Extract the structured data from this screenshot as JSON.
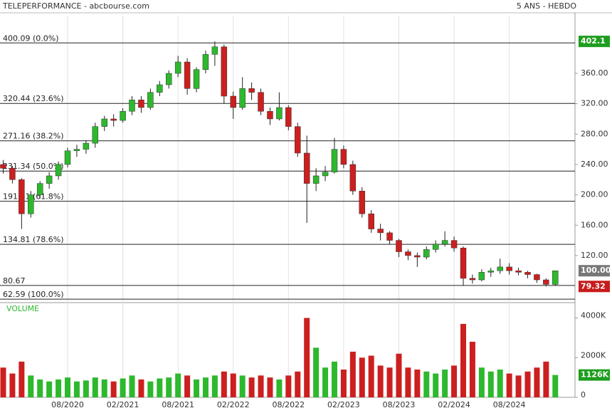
{
  "chart_data": {
    "type": "candlestick",
    "title": "TELEPERFORMANCE - abcbourse.com",
    "subtitle": "5 ANS - HEBDO",
    "volume_label": "VOLUME",
    "categories": [
      null,
      null,
      null,
      null,
      null,
      null,
      null,
      "08/2020",
      null,
      null,
      null,
      null,
      null,
      "02/2021",
      null,
      null,
      null,
      null,
      null,
      "08/2021",
      null,
      null,
      null,
      null,
      null,
      "02/2022",
      null,
      null,
      null,
      null,
      null,
      "08/2022",
      null,
      null,
      null,
      null,
      null,
      "02/2023",
      null,
      null,
      null,
      null,
      null,
      "08/2023",
      null,
      null,
      null,
      null,
      null,
      "02/2024",
      null,
      null,
      null,
      null,
      null,
      "08/2024",
      null,
      null,
      null,
      null,
      null
    ],
    "open": [
      240,
      235,
      220,
      175,
      200,
      215,
      225,
      240,
      258,
      260,
      268,
      290,
      300,
      298,
      310,
      325,
      315,
      335,
      345,
      360,
      375,
      340,
      365,
      385,
      395,
      330,
      315,
      340,
      335,
      310,
      300,
      315,
      290,
      255,
      215,
      225,
      230,
      260,
      240,
      205,
      175,
      155,
      150,
      140,
      125,
      120,
      118,
      128,
      135,
      140,
      130,
      90,
      88,
      98,
      100,
      105,
      100,
      98,
      95,
      88,
      82
    ],
    "high": [
      246,
      238,
      222,
      205,
      218,
      230,
      244,
      262,
      266,
      272,
      295,
      304,
      306,
      314,
      330,
      330,
      340,
      350,
      364,
      383,
      380,
      368,
      390,
      402.1,
      398,
      336,
      355,
      348,
      340,
      315,
      335,
      318,
      295,
      278,
      235,
      238,
      275,
      265,
      245,
      210,
      180,
      162,
      152,
      142,
      128,
      124,
      132,
      140,
      152,
      145,
      132,
      95,
      102,
      104,
      116,
      110,
      104,
      100,
      96,
      90,
      100
    ],
    "low": [
      228,
      215,
      155,
      170,
      195,
      208,
      220,
      236,
      250,
      254,
      262,
      284,
      290,
      295,
      305,
      308,
      312,
      330,
      340,
      355,
      332,
      335,
      360,
      370,
      320,
      300,
      312,
      325,
      305,
      292,
      298,
      285,
      250,
      163,
      205,
      218,
      228,
      235,
      200,
      170,
      150,
      140,
      135,
      118,
      114,
      105,
      115,
      124,
      132,
      125,
      80,
      83,
      86,
      92,
      96,
      95,
      94,
      90,
      84,
      79.32,
      80
    ],
    "close": [
      235,
      220,
      175,
      200,
      215,
      225,
      240,
      258,
      260,
      268,
      290,
      300,
      298,
      310,
      325,
      315,
      335,
      345,
      360,
      375,
      340,
      365,
      385,
      395,
      330,
      315,
      340,
      335,
      310,
      300,
      315,
      290,
      255,
      215,
      225,
      230,
      260,
      240,
      205,
      175,
      155,
      150,
      140,
      125,
      120,
      118,
      128,
      135,
      140,
      130,
      90,
      88,
      98,
      100,
      105,
      100,
      98,
      95,
      88,
      82,
      100
    ],
    "volume": [
      1500,
      1200,
      1800,
      1100,
      900,
      800,
      900,
      1000,
      800,
      850,
      1000,
      900,
      800,
      950,
      1100,
      900,
      800,
      950,
      1000,
      1200,
      1100,
      900,
      1000,
      1100,
      1300,
      1200,
      1100,
      1000,
      1100,
      1000,
      900,
      1100,
      1300,
      4000,
      2500,
      1500,
      1800,
      1400,
      2300,
      2000,
      2100,
      1600,
      1500,
      2200,
      1500,
      1400,
      1300,
      1200,
      1400,
      1600,
      3700,
      2800,
      1500,
      1300,
      1400,
      1200,
      1100,
      1300,
      1500,
      1800,
      1126
    ],
    "up_color": "#2db82d",
    "down_color": "#cc1f1f",
    "ylim": [
      58,
      436
    ],
    "yticks": [
      {
        "value": 360,
        "label": "360.00"
      },
      {
        "value": 320,
        "label": "320.00"
      },
      {
        "value": 280,
        "label": "280.00"
      },
      {
        "value": 240,
        "label": "240.00"
      },
      {
        "value": 200,
        "label": "200.00"
      },
      {
        "value": 160,
        "label": "160.00"
      },
      {
        "value": 120,
        "label": "120.00"
      }
    ],
    "vlim": [
      0,
      4700
    ],
    "vticks": [
      {
        "value": 4000,
        "label": "4000K"
      },
      {
        "value": 2000,
        "label": "2000K"
      },
      0
    ],
    "levels": [
      {
        "value": 400.09,
        "label": "400.09  (0.0%)"
      },
      {
        "value": 320.44,
        "label": "320.44  (23.6%)"
      },
      {
        "value": 271.16,
        "label": "271.16  (38.2%)"
      },
      {
        "value": 231.34,
        "label": "231.34  (50.0%)"
      },
      {
        "value": 191.51,
        "label": "191.51  (61.8%)"
      },
      {
        "value": 134.81,
        "label": "134.81  (78.6%)"
      },
      {
        "value": 80.67,
        "label": "80.67"
      },
      {
        "value": 62.59,
        "label": "62.59  (100.0%)"
      }
    ],
    "badges": [
      {
        "value": 402.1,
        "label": "402.1",
        "color": "#1e9e1e"
      },
      {
        "value": 100,
        "label": "100.00",
        "color": "#777777"
      },
      {
        "value": 79.32,
        "label": "79.32",
        "color": "#c81c1c"
      }
    ],
    "volume_badge": {
      "value": 1126,
      "label": "1126K",
      "color": "#1e9e1e"
    }
  }
}
